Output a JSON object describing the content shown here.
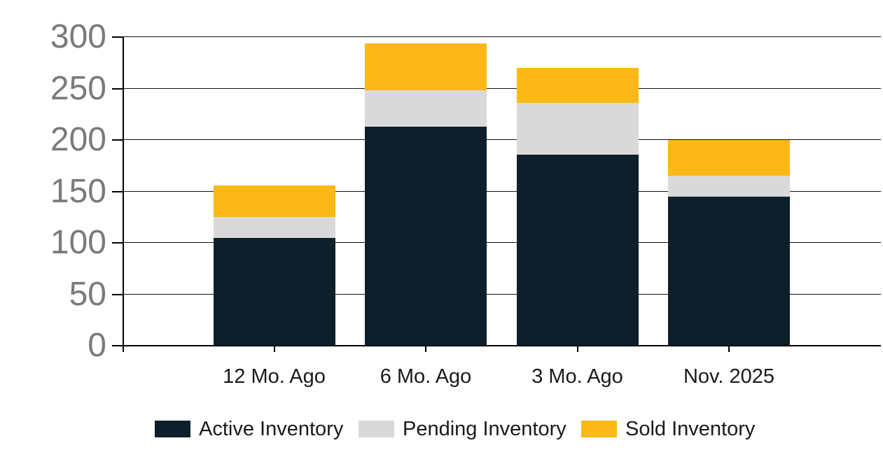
{
  "chart_data": {
    "type": "bar",
    "stacked": true,
    "title": "",
    "categories": [
      "12 Mo. Ago",
      "6 Mo. Ago",
      "3 Mo. Ago",
      "Nov. 2025"
    ],
    "series": [
      {
        "name": "Active Inventory",
        "color": "#0D1F2B",
        "values": [
          105,
          213,
          186,
          145
        ]
      },
      {
        "name": "Pending Inventory",
        "color": "#D9D9D9",
        "values": [
          20,
          35,
          50,
          20
        ]
      },
      {
        "name": "Sold Inventory",
        "color": "#FBB817",
        "values": [
          31,
          46,
          34,
          35
        ]
      }
    ],
    "stack_totals": [
      156,
      294,
      270,
      200
    ],
    "xlabel": "",
    "ylabel": "",
    "ylim": [
      0,
      300
    ],
    "ytick_interval": 50,
    "yticks": [
      0,
      50,
      100,
      150,
      200,
      250,
      300
    ],
    "grid": true,
    "legend_position": "bottom"
  },
  "colors": {
    "background": "#FFFFFF",
    "gridline": "#111111",
    "axis": "#000000",
    "y_tick_label": "#7A7A7A",
    "x_tick_label": "#1A1A1A",
    "legend_text": "#1A1A1A"
  }
}
